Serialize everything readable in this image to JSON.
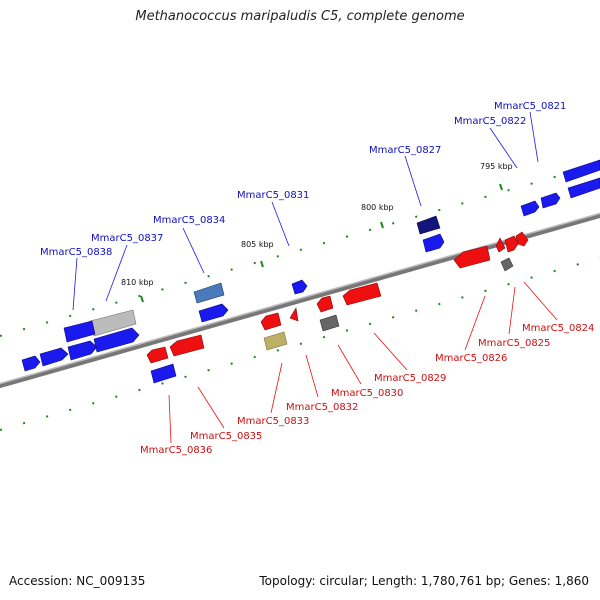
{
  "title": "Methanococcus maripaludis C5, complete genome",
  "footer": {
    "accession": "Accession: NC_009135",
    "summary": "Topology: circular; Length: 1,780,761 bp; Genes: 1,860"
  },
  "colors": {
    "forward": "#1010ee",
    "reverse": "#ee1010",
    "backbone": "#8a8a8a",
    "tick": "#1a8a1a"
  },
  "scale": [
    {
      "label": "810 kbp"
    },
    {
      "label": "805 kbp"
    },
    {
      "label": "800 kbp"
    },
    {
      "label": "795 kbp"
    }
  ],
  "genes_forward": [
    {
      "label": "MmarC5_0821"
    },
    {
      "label": "MmarC5_0822"
    },
    {
      "label": "MmarC5_0827"
    },
    {
      "label": "MmarC5_0831"
    },
    {
      "label": "MmarC5_0834"
    },
    {
      "label": "MmarC5_0837"
    },
    {
      "label": "MmarC5_0838"
    }
  ],
  "genes_reverse": [
    {
      "label": "MmarC5_0824"
    },
    {
      "label": "MmarC5_0825"
    },
    {
      "label": "MmarC5_0826"
    },
    {
      "label": "MmarC5_0829"
    },
    {
      "label": "MmarC5_0830"
    },
    {
      "label": "MmarC5_0832"
    },
    {
      "label": "MmarC5_0833"
    },
    {
      "label": "MmarC5_0835"
    },
    {
      "label": "MmarC5_0836"
    }
  ]
}
